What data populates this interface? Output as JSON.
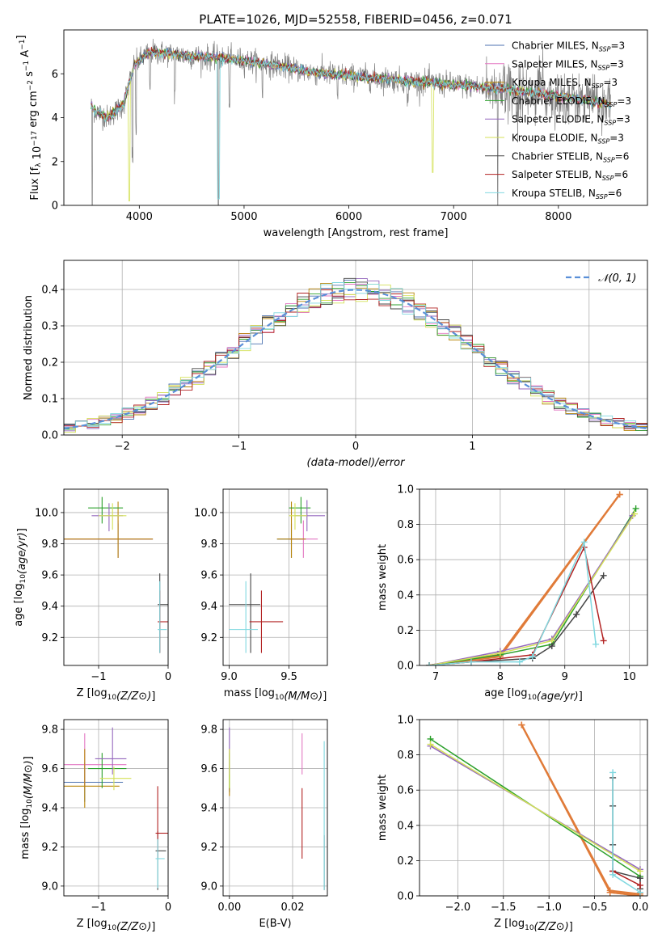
{
  "figure_title": "PLATE=1026, MJD=52558, FIBERID=0456, z=0.071",
  "colors": {
    "Chabrier MILES": "#4c72b0",
    "Salpeter MILES": "#e377c2",
    "Kroupa MILES": "#b8860b",
    "Chabrier ELODIE": "#2ca02c",
    "Salpeter ELODIE": "#9467bd",
    "Kroupa ELODIE": "#d4e157",
    "Chabrier STELIB": "#444444",
    "Salpeter STELIB": "#b22222",
    "Kroupa STELIB": "#80d8e0",
    "data": "#808080",
    "orange": "#e07b39",
    "normal": "#5a8fd8"
  },
  "legend_top": [
    {
      "name": "Chabrier MILES",
      "suffix": "3"
    },
    {
      "name": "Salpeter MILES",
      "suffix": "3"
    },
    {
      "name": "Kroupa MILES",
      "suffix": "3"
    },
    {
      "name": "Chabrier ELODIE",
      "suffix": "3"
    },
    {
      "name": "Salpeter ELODIE",
      "suffix": "3"
    },
    {
      "name": "Kroupa ELODIE",
      "suffix": "3"
    },
    {
      "name": "Chabrier STELIB",
      "suffix": "6"
    },
    {
      "name": "Salpeter STELIB",
      "suffix": "6"
    },
    {
      "name": "Kroupa STELIB",
      "suffix": "6"
    }
  ],
  "chart_data": [
    {
      "id": "spectrum",
      "type": "line",
      "title": "PLATE=1026, MJD=52558, FIBERID=0456, z=0.071",
      "xlabel": "wavelength [Angstrom, rest frame]",
      "ylabel": "Flux [f_λ 10^-17 erg cm^-2 s^-1 A^-1]",
      "xlim": [
        3280,
        8850
      ],
      "ylim": [
        0,
        8
      ],
      "xticks": [
        4000,
        5000,
        6000,
        7000,
        8000
      ],
      "yticks": [
        0,
        2,
        4,
        6
      ],
      "grid": false,
      "legend": "top-right",
      "x_range_data": [
        3540,
        8500
      ],
      "continuum": [
        [
          3550,
          4.4
        ],
        [
          3700,
          4.0
        ],
        [
          3850,
          4.6
        ],
        [
          3950,
          6.4
        ],
        [
          4100,
          7.0
        ],
        [
          4300,
          6.9
        ],
        [
          4500,
          6.8
        ],
        [
          4800,
          6.7
        ],
        [
          5000,
          6.6
        ],
        [
          5300,
          6.4
        ],
        [
          5600,
          6.1
        ],
        [
          6000,
          5.9
        ],
        [
          6500,
          5.7
        ],
        [
          7000,
          5.5
        ],
        [
          7500,
          5.3
        ],
        [
          8000,
          5.0
        ],
        [
          8500,
          4.6
        ]
      ]
    },
    {
      "id": "residuals",
      "type": "bar",
      "xlabel": "(data-model)/error",
      "ylabel": "Normed distribution",
      "xlim": [
        -2.5,
        2.5
      ],
      "ylim": [
        0,
        0.48
      ],
      "xticks": [
        -2,
        -1,
        0,
        1,
        2
      ],
      "yticks": [
        0.0,
        0.1,
        0.2,
        0.3,
        0.4
      ],
      "grid": true,
      "legend": "top-right",
      "reference_curve": "𝒩(0, 1)",
      "bin_width": 0.1
    },
    {
      "id": "age-vs-Z",
      "type": "scatter",
      "xlabel": "Z [log10(Z/Z⊙)]",
      "ylabel": "age  [log10(age/yr)]",
      "xlim": [
        -1.5,
        0
      ],
      "ylim": [
        9.02,
        10.15
      ],
      "xticks": [
        -1,
        0
      ],
      "yticks": [
        9.2,
        9.4,
        9.6,
        9.8,
        10.0
      ],
      "grid": true,
      "points": [
        {
          "series": "Chabrier MILES",
          "x": -0.72,
          "y": 9.83,
          "xerr": [
            0.85,
            0.5
          ],
          "yerr": [
            0.12,
            0.1
          ]
        },
        {
          "series": "Salpeter MILES",
          "x": -0.72,
          "y": 9.83,
          "xerr": [
            0.85,
            0.5
          ],
          "yerr": [
            0.12,
            0.12
          ]
        },
        {
          "series": "Kroupa MILES",
          "x": -0.72,
          "y": 9.83,
          "xerr": [
            0.85,
            0.5
          ],
          "yerr": [
            0.12,
            0.24
          ]
        },
        {
          "series": "Chabrier ELODIE",
          "x": -0.95,
          "y": 10.03,
          "xerr": [
            0.2,
            0.3
          ],
          "yerr": [
            0.1,
            0.07
          ]
        },
        {
          "series": "Salpeter ELODIE",
          "x": -0.85,
          "y": 9.98,
          "xerr": [
            0.25,
            0.2
          ],
          "yerr": [
            0.1,
            0.08
          ]
        },
        {
          "series": "Kroupa ELODIE",
          "x": -0.8,
          "y": 9.98,
          "xerr": [
            0.2,
            0.2
          ],
          "yerr": [
            0.09,
            0.08
          ]
        },
        {
          "series": "Chabrier STELIB",
          "x": -0.12,
          "y": 9.41,
          "xerr": [
            0.03,
            0.12
          ],
          "yerr": [
            0.31,
            0.2
          ]
        },
        {
          "series": "Salpeter STELIB",
          "x": -0.12,
          "y": 9.3,
          "xerr": [
            0.03,
            0.12
          ],
          "yerr": [
            0.2,
            0.2
          ]
        },
        {
          "series": "Kroupa STELIB",
          "x": -0.12,
          "y": 9.25,
          "xerr": [
            0.03,
            0.1
          ],
          "yerr": [
            0.15,
            0.31
          ]
        }
      ]
    },
    {
      "id": "age-vs-mass",
      "type": "scatter",
      "xlabel": "mass [log10(M/M⊙)]",
      "ylabel": "",
      "xlim": [
        8.95,
        9.82
      ],
      "ylim": [
        9.02,
        10.15
      ],
      "xticks": [
        9.0,
        9.5
      ],
      "yticks": [
        9.2,
        9.4,
        9.6,
        9.8,
        10.0
      ],
      "grid": true,
      "points": [
        {
          "series": "Chabrier MILES",
          "x": 9.52,
          "y": 9.83,
          "xerr": [
            0.12,
            0.12
          ],
          "yerr": [
            0.12,
            0.1
          ]
        },
        {
          "series": "Salpeter MILES",
          "x": 9.62,
          "y": 9.83,
          "xerr": [
            0.12,
            0.12
          ],
          "yerr": [
            0.12,
            0.12
          ]
        },
        {
          "series": "Kroupa MILES",
          "x": 9.52,
          "y": 9.83,
          "xerr": [
            0.12,
            0.12
          ],
          "yerr": [
            0.12,
            0.24
          ]
        },
        {
          "series": "Chabrier ELODIE",
          "x": 9.6,
          "y": 10.03,
          "xerr": [
            0.1,
            0.08
          ],
          "yerr": [
            0.1,
            0.07
          ]
        },
        {
          "series": "Salpeter ELODIE",
          "x": 9.65,
          "y": 9.98,
          "xerr": [
            0.1,
            0.15
          ],
          "yerr": [
            0.1,
            0.1
          ]
        },
        {
          "series": "Kroupa ELODIE",
          "x": 9.55,
          "y": 9.98,
          "xerr": [
            0.05,
            0.1
          ],
          "yerr": [
            0.09,
            0.08
          ]
        },
        {
          "series": "Chabrier STELIB",
          "x": 9.18,
          "y": 9.41,
          "xerr": [
            0.18,
            0.08
          ],
          "yerr": [
            0.31,
            0.2
          ]
        },
        {
          "series": "Salpeter STELIB",
          "x": 9.27,
          "y": 9.3,
          "xerr": [
            0.1,
            0.18
          ],
          "yerr": [
            0.2,
            0.2
          ]
        },
        {
          "series": "Kroupa STELIB",
          "x": 9.14,
          "y": 9.25,
          "xerr": [
            0.14,
            0.1
          ],
          "yerr": [
            0.15,
            0.31
          ]
        }
      ]
    },
    {
      "id": "mass-weight-vs-age",
      "type": "line",
      "xlabel": "age  [log10(age/yr)]",
      "ylabel": "mass weight",
      "xlim": [
        6.75,
        10.28
      ],
      "ylim": [
        0,
        1
      ],
      "xticks": [
        7,
        8,
        9,
        10
      ],
      "yticks": [
        0.0,
        0.2,
        0.4,
        0.6,
        0.8,
        1.0
      ],
      "grid": true,
      "series": [
        {
          "name": "Chabrier MILES",
          "points": [
            [
              6.9,
              0.0
            ],
            [
              8.0,
              0.06
            ],
            [
              9.85,
              0.97
            ]
          ]
        },
        {
          "name": "Salpeter MILES",
          "points": [
            [
              6.9,
              0.0
            ],
            [
              8.0,
              0.05
            ],
            [
              9.85,
              0.97
            ]
          ]
        },
        {
          "name": "Kroupa MILES",
          "points": [
            [
              6.9,
              0.0
            ],
            [
              8.0,
              0.06
            ],
            [
              9.85,
              0.97
            ]
          ]
        },
        {
          "name": "Chabrier ELODIE",
          "points": [
            [
              6.9,
              0.0
            ],
            [
              8.0,
              0.06
            ],
            [
              8.8,
              0.12
            ],
            [
              10.1,
              0.89
            ]
          ]
        },
        {
          "name": "Salpeter ELODIE",
          "points": [
            [
              6.9,
              0.0
            ],
            [
              8.0,
              0.08
            ],
            [
              8.8,
              0.15
            ],
            [
              10.05,
              0.85
            ]
          ]
        },
        {
          "name": "Kroupa ELODIE",
          "points": [
            [
              6.9,
              0.0
            ],
            [
              8.0,
              0.07
            ],
            [
              8.8,
              0.14
            ],
            [
              10.08,
              0.86
            ]
          ]
        },
        {
          "name": "Chabrier STELIB",
          "points": [
            [
              6.9,
              0.0
            ],
            [
              7.55,
              0.02
            ],
            [
              8.5,
              0.04
            ],
            [
              8.8,
              0.11
            ],
            [
              9.18,
              0.29
            ],
            [
              9.6,
              0.51
            ]
          ]
        },
        {
          "name": "Salpeter STELIB",
          "points": [
            [
              6.9,
              0.0
            ],
            [
              7.55,
              0.02
            ],
            [
              8.5,
              0.06
            ],
            [
              9.3,
              0.67
            ],
            [
              9.6,
              0.14
            ]
          ]
        },
        {
          "name": "Kroupa STELIB",
          "points": [
            [
              6.9,
              0.0
            ],
            [
              7.55,
              0.02
            ],
            [
              8.3,
              0.02
            ],
            [
              8.5,
              0.05
            ],
            [
              9.3,
              0.7
            ],
            [
              9.48,
              0.12
            ]
          ]
        }
      ]
    },
    {
      "id": "mass-vs-Z",
      "type": "scatter",
      "xlabel": "Z [log10(Z/Z⊙)]",
      "ylabel": "mass [log10(M/M⊙)]",
      "xlim": [
        -1.5,
        0
      ],
      "ylim": [
        8.95,
        9.85
      ],
      "xticks": [
        -1,
        0
      ],
      "yticks": [
        9.0,
        9.2,
        9.4,
        9.6,
        9.8
      ],
      "grid": true,
      "points": [
        {
          "series": "Chabrier MILES",
          "x": -1.2,
          "y": 9.53,
          "xerr": [
            0.45,
            0.55
          ],
          "yerr": [
            0.1,
            0.1
          ]
        },
        {
          "series": "Salpeter MILES",
          "x": -1.2,
          "y": 9.62,
          "xerr": [
            0.3,
            0.6
          ],
          "yerr": [
            0.12,
            0.16
          ]
        },
        {
          "series": "Kroupa MILES",
          "x": -1.2,
          "y": 9.51,
          "xerr": [
            0.45,
            0.5
          ],
          "yerr": [
            0.11,
            0.19
          ]
        },
        {
          "series": "Chabrier ELODIE",
          "x": -0.95,
          "y": 9.6,
          "xerr": [
            0.2,
            0.35
          ],
          "yerr": [
            0.1,
            0.08
          ]
        },
        {
          "series": "Salpeter ELODIE",
          "x": -0.8,
          "y": 9.65,
          "xerr": [
            0.25,
            0.2
          ],
          "yerr": [
            0.08,
            0.16
          ]
        },
        {
          "series": "Kroupa ELODIE",
          "x": -0.78,
          "y": 9.55,
          "xerr": [
            0.2,
            0.25
          ],
          "yerr": [
            0.06,
            0.06
          ]
        },
        {
          "series": "Chabrier STELIB",
          "x": -0.15,
          "y": 9.18,
          "xerr": [
            0.03,
            0.12
          ],
          "yerr": [
            0.2,
            0.1
          ]
        },
        {
          "series": "Salpeter STELIB",
          "x": -0.15,
          "y": 9.27,
          "xerr": [
            0.03,
            0.15
          ],
          "yerr": [
            0.13,
            0.24
          ]
        },
        {
          "series": "Kroupa STELIB",
          "x": -0.15,
          "y": 9.14,
          "xerr": [
            0.03,
            0.1
          ],
          "yerr": [
            0.15,
            0.1
          ]
        }
      ]
    },
    {
      "id": "mass-vs-ebv",
      "type": "scatter",
      "xlabel": "E(B-V)",
      "ylabel": "",
      "xlim": [
        -0.002,
        0.031
      ],
      "ylim": [
        8.95,
        9.85
      ],
      "xticks": [
        0.0,
        0.02
      ],
      "yticks": [
        9.0,
        9.2,
        9.4,
        9.6,
        9.8
      ],
      "grid": true,
      "points": [
        {
          "series": "Chabrier MILES",
          "x": 0.0,
          "y": 9.53,
          "yerr": [
            0.05,
            0.1
          ]
        },
        {
          "series": "Salpeter MILES",
          "x": 0.023,
          "y": 9.62,
          "yerr": [
            0.05,
            0.16
          ]
        },
        {
          "series": "Kroupa MILES",
          "x": 0.0,
          "y": 9.51,
          "yerr": [
            0.05,
            0.19
          ]
        },
        {
          "series": "Chabrier ELODIE",
          "x": 0.0,
          "y": 9.6,
          "yerr": [
            0.1,
            0.08
          ]
        },
        {
          "series": "Salpeter ELODIE",
          "x": 0.0,
          "y": 9.65,
          "yerr": [
            0.08,
            0.16
          ]
        },
        {
          "series": "Kroupa ELODIE",
          "x": 0.0,
          "y": 9.6,
          "yerr": [
            0.1,
            0.1
          ]
        },
        {
          "series": "Chabrier STELIB",
          "x": 0.03,
          "y": 9.1,
          "yerr": [
            0.12,
            0.16
          ]
        },
        {
          "series": "Salpeter STELIB",
          "x": 0.023,
          "y": 9.3,
          "yerr": [
            0.16,
            0.2
          ]
        },
        {
          "series": "Kroupa STELIB",
          "x": 0.03,
          "y": 9.5,
          "yerr": [
            0.52,
            0.24
          ]
        }
      ]
    },
    {
      "id": "mass-weight-vs-Z",
      "type": "line",
      "xlabel": "Z [log10(Z/Z⊙)]",
      "ylabel": "mass weight",
      "xlim": [
        -2.42,
        0.08
      ],
      "ylim": [
        0,
        1
      ],
      "xticks": [
        -2.0,
        -1.5,
        -1.0,
        -0.5,
        0.0
      ],
      "yticks": [
        0.0,
        0.2,
        0.4,
        0.6,
        0.8,
        1.0
      ],
      "grid": true,
      "series": [
        {
          "name": "Chabrier MILES",
          "points": [
            [
              -1.3,
              0.97
            ],
            [
              -0.33,
              0.02
            ],
            [
              0.0,
              0.0
            ]
          ]
        },
        {
          "name": "Salpeter MILES",
          "points": [
            [
              -1.3,
              0.97
            ],
            [
              -0.33,
              0.03
            ],
            [
              0.0,
              0.01
            ]
          ]
        },
        {
          "name": "Kroupa MILES",
          "points": [
            [
              -1.3,
              0.97
            ],
            [
              -0.33,
              0.02
            ],
            [
              0.0,
              0.0
            ]
          ]
        },
        {
          "name": "Chabrier ELODIE",
          "points": [
            [
              -2.3,
              0.89
            ],
            [
              0.0,
              0.11
            ]
          ]
        },
        {
          "name": "Salpeter ELODIE",
          "points": [
            [
              -2.3,
              0.85
            ],
            [
              0.0,
              0.15
            ]
          ]
        },
        {
          "name": "Kroupa ELODIE",
          "points": [
            [
              -2.3,
              0.86
            ],
            [
              0.0,
              0.14
            ]
          ]
        },
        {
          "name": "Chabrier STELIB",
          "points": [
            [
              -0.3,
              0.67
            ],
            [
              -0.3,
              0.51
            ],
            [
              -0.3,
              0.29
            ],
            [
              -0.3,
              0.14
            ],
            [
              0.0,
              0.1
            ],
            [
              0.0,
              0.04
            ]
          ]
        },
        {
          "name": "Salpeter STELIB",
          "points": [
            [
              -0.3,
              0.14
            ],
            [
              0.0,
              0.06
            ],
            [
              0.0,
              0.02
            ]
          ]
        },
        {
          "name": "Kroupa STELIB",
          "points": [
            [
              -0.3,
              0.7
            ],
            [
              -0.3,
              0.12
            ],
            [
              0.0,
              0.02
            ]
          ]
        }
      ]
    }
  ]
}
